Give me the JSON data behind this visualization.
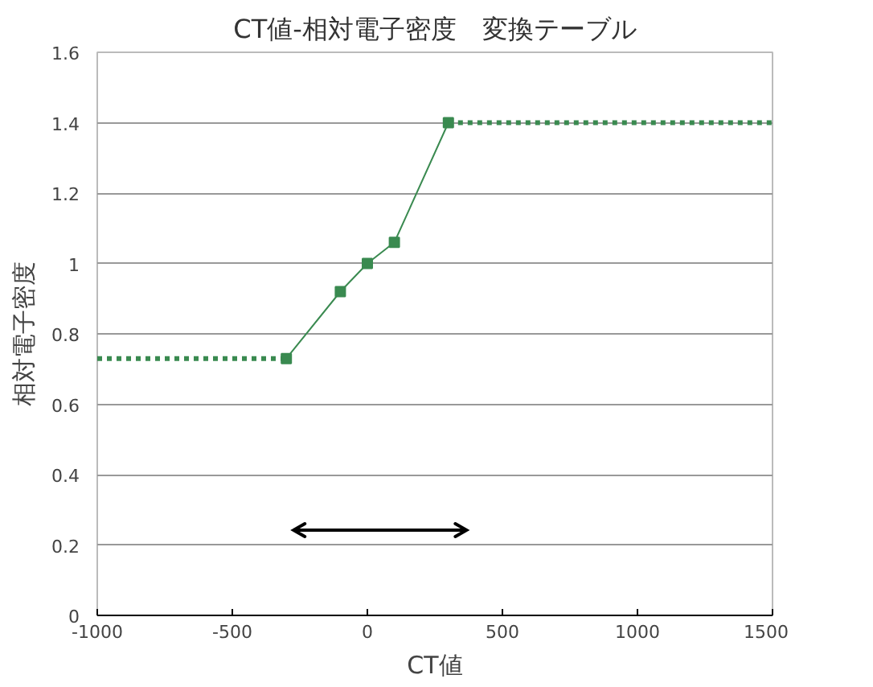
{
  "chart_data": {
    "type": "line",
    "title": "CT値-相対電子密度　変換テーブル",
    "xlabel": "CT値",
    "ylabel": "相対電子密度",
    "xlim": [
      -1000,
      1500
    ],
    "xticks": [
      {
        "value": -1000,
        "label": "-1000"
      },
      {
        "value": -500,
        "label": "-500"
      },
      0,
      500,
      1000,
      1500
    ],
    "ylim": [
      0,
      1.6
    ],
    "yticks": [
      0,
      0.2,
      0.4,
      0.6,
      0.8,
      1,
      1.2,
      1.4,
      1.6
    ],
    "grid": "y",
    "series": [
      {
        "color": "#3a8a50",
        "x": [
          -300,
          -100,
          0,
          100,
          300
        ],
        "values": [
          0.73,
          0.92,
          1.0,
          1.06,
          1.4
        ],
        "marker": "square",
        "line_style": "solid"
      },
      {
        "color": "#3a8a50",
        "x": [
          -1000,
          -300
        ],
        "values": [
          0.73,
          0.73
        ],
        "marker": "none",
        "line_style": "dotted"
      },
      {
        "color": "#3a8a50",
        "x": [
          300,
          1500
        ],
        "values": [
          1.4,
          1.4
        ],
        "marker": "none",
        "line_style": "dotted"
      }
    ]
  }
}
